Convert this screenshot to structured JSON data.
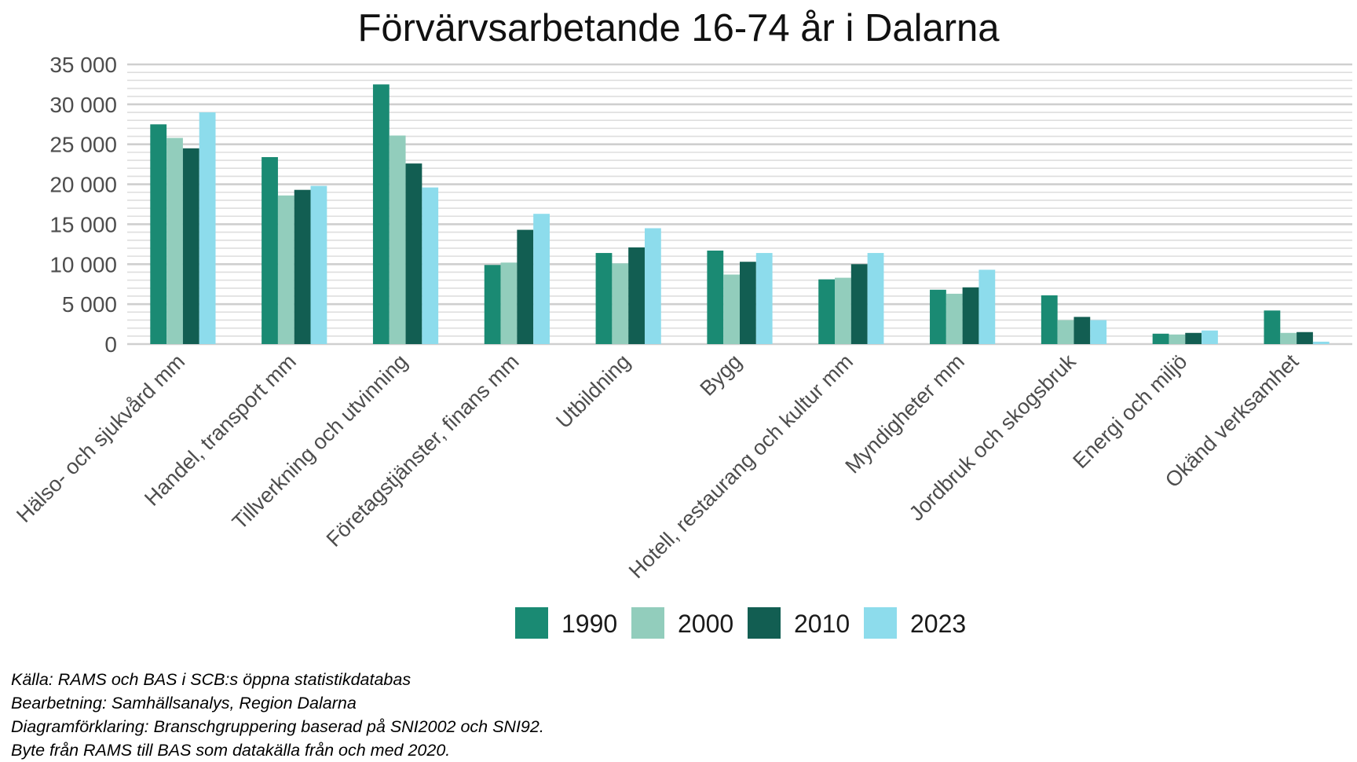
{
  "chart_data": {
    "type": "bar",
    "title": "Förvärvsarbetande 16-74 år i Dalarna",
    "xlabel": "",
    "ylabel": "",
    "ylim": [
      0,
      35000
    ],
    "yticks": [
      0,
      5000,
      10000,
      15000,
      20000,
      25000,
      30000,
      35000
    ],
    "ytick_labels": [
      "0",
      "5 000",
      "10 000",
      "15 000",
      "20 000",
      "25 000",
      "30 000",
      "35 000"
    ],
    "grid": true,
    "legend_position": "bottom",
    "categories": [
      "Hälso- och sjukvård mm",
      "Handel, transport mm",
      "Tillverkning och utvinning",
      "Företagstjänster, finans mm",
      "Utbildning",
      "Bygg",
      "Hotell, restaurang och kultur mm",
      "Myndigheter mm",
      "Jordbruk och skogsbruk",
      "Energi och miljö",
      "Okänd verksamhet"
    ],
    "series": [
      {
        "name": "1990",
        "color": "#1a8a73",
        "values": [
          27500,
          23400,
          32500,
          9900,
          11400,
          11700,
          8100,
          6800,
          6100,
          1300,
          4200
        ]
      },
      {
        "name": "2000",
        "color": "#92cdbc",
        "values": [
          25800,
          18600,
          26100,
          10200,
          10100,
          8700,
          8300,
          6300,
          3000,
          1200,
          1400
        ]
      },
      {
        "name": "2010",
        "color": "#125e52",
        "values": [
          24500,
          19300,
          22600,
          14300,
          12100,
          10300,
          10000,
          7100,
          3400,
          1400,
          1500
        ]
      },
      {
        "name": "2023",
        "color": "#8ddcec",
        "values": [
          29000,
          19800,
          19600,
          16300,
          14500,
          11400,
          11400,
          9300,
          3000,
          1700,
          300
        ]
      }
    ]
  },
  "caption": [
    "Källa: RAMS och BAS i SCB:s öppna statistikdatabas",
    "Bearbetning: Samhällsanalys, Region Dalarna",
    "Diagramförklaring: Branschgruppering baserad på SNI2002 och SNI92.",
    "Byte från RAMS till BAS som datakälla från och med 2020."
  ],
  "colors": {
    "grid_major": "#cfcfcf",
    "grid_minor": "#dedede",
    "axis_text": "#4d4d4d",
    "title_text": "#111111"
  }
}
